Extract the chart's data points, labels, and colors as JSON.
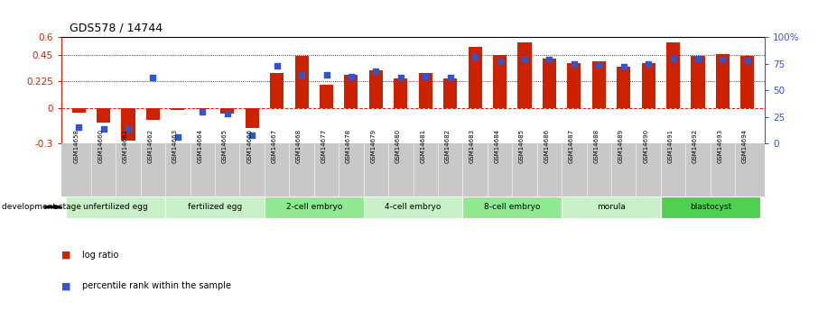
{
  "title": "GDS578 / 14744",
  "samples": [
    "GSM14658",
    "GSM14660",
    "GSM14661",
    "GSM14662",
    "GSM14663",
    "GSM14664",
    "GSM14665",
    "GSM14666",
    "GSM14667",
    "GSM14668",
    "GSM14677",
    "GSM14678",
    "GSM14679",
    "GSM14680",
    "GSM14681",
    "GSM14682",
    "GSM14683",
    "GSM14684",
    "GSM14685",
    "GSM14686",
    "GSM14687",
    "GSM14688",
    "GSM14689",
    "GSM14690",
    "GSM14691",
    "GSM14692",
    "GSM14693",
    "GSM14694"
  ],
  "log_ratio": [
    -0.04,
    -0.12,
    -0.28,
    -0.1,
    -0.02,
    -0.01,
    -0.05,
    -0.17,
    0.3,
    0.44,
    0.2,
    0.28,
    0.32,
    0.25,
    0.3,
    0.25,
    0.52,
    0.45,
    0.56,
    0.42,
    0.38,
    0.4,
    0.35,
    0.38,
    0.56,
    0.44,
    0.46,
    0.44
  ],
  "percentile_rank": [
    15,
    14,
    14,
    62,
    6,
    30,
    28,
    8,
    73,
    65,
    65,
    63,
    68,
    62,
    63,
    62,
    82,
    77,
    79,
    79,
    75,
    74,
    72,
    75,
    80,
    80,
    79,
    78
  ],
  "stages": [
    {
      "name": "unfertilized egg",
      "count": 4,
      "color": "#c8f0c8"
    },
    {
      "name": "fertilized egg",
      "count": 4,
      "color": "#c8f0c8"
    },
    {
      "name": "2-cell embryo",
      "count": 4,
      "color": "#90e890"
    },
    {
      "name": "4-cell embryo",
      "count": 4,
      "color": "#c8f0c8"
    },
    {
      "name": "8-cell embryo",
      "count": 4,
      "color": "#90e890"
    },
    {
      "name": "morula",
      "count": 4,
      "color": "#c8f0c8"
    },
    {
      "name": "blastocyst",
      "count": 4,
      "color": "#50d050"
    }
  ],
  "bar_color": "#cc2200",
  "dot_color": "#3355cc",
  "ylim_left": [
    -0.3,
    0.6
  ],
  "ylim_right": [
    0,
    100
  ],
  "yticks_left": [
    -0.3,
    0.0,
    0.225,
    0.45,
    0.6
  ],
  "ytick_labels_left": [
    "-0.3",
    "0",
    "0.225",
    "0.45",
    "0.6"
  ],
  "yticks_right": [
    0,
    25,
    50,
    75,
    100
  ],
  "ytick_labels_right": [
    "0",
    "25",
    "50",
    "75",
    "100%"
  ],
  "hlines": [
    0.225,
    0.45
  ],
  "legend_items": [
    {
      "label": "log ratio",
      "color": "#cc2200"
    },
    {
      "label": "percentile rank within the sample",
      "color": "#3355cc"
    }
  ],
  "stage_label": "development stage",
  "bg_color": "#ffffff",
  "gray_band_color": "#c8c8c8"
}
